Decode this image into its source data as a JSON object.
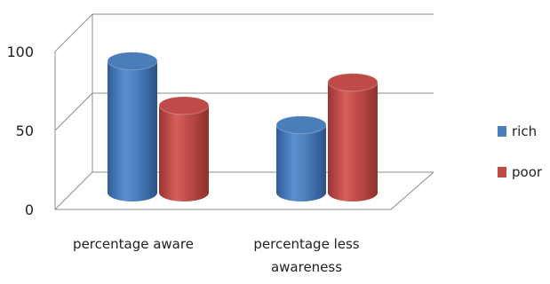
{
  "chart_data": {
    "type": "bar",
    "style": "3d-cylinder",
    "categories": [
      "percentage aware",
      "percentage less awareness"
    ],
    "series": [
      {
        "name": "rich",
        "values": [
          68,
          35
        ],
        "color": "#4a7ebb"
      },
      {
        "name": "poor",
        "values": [
          45,
          57
        ],
        "color": "#be4b48"
      }
    ],
    "y_ticks": [
      "0",
      "50",
      "100"
    ],
    "ylim": [
      0,
      100
    ],
    "grid": true,
    "legend_position": "right"
  }
}
